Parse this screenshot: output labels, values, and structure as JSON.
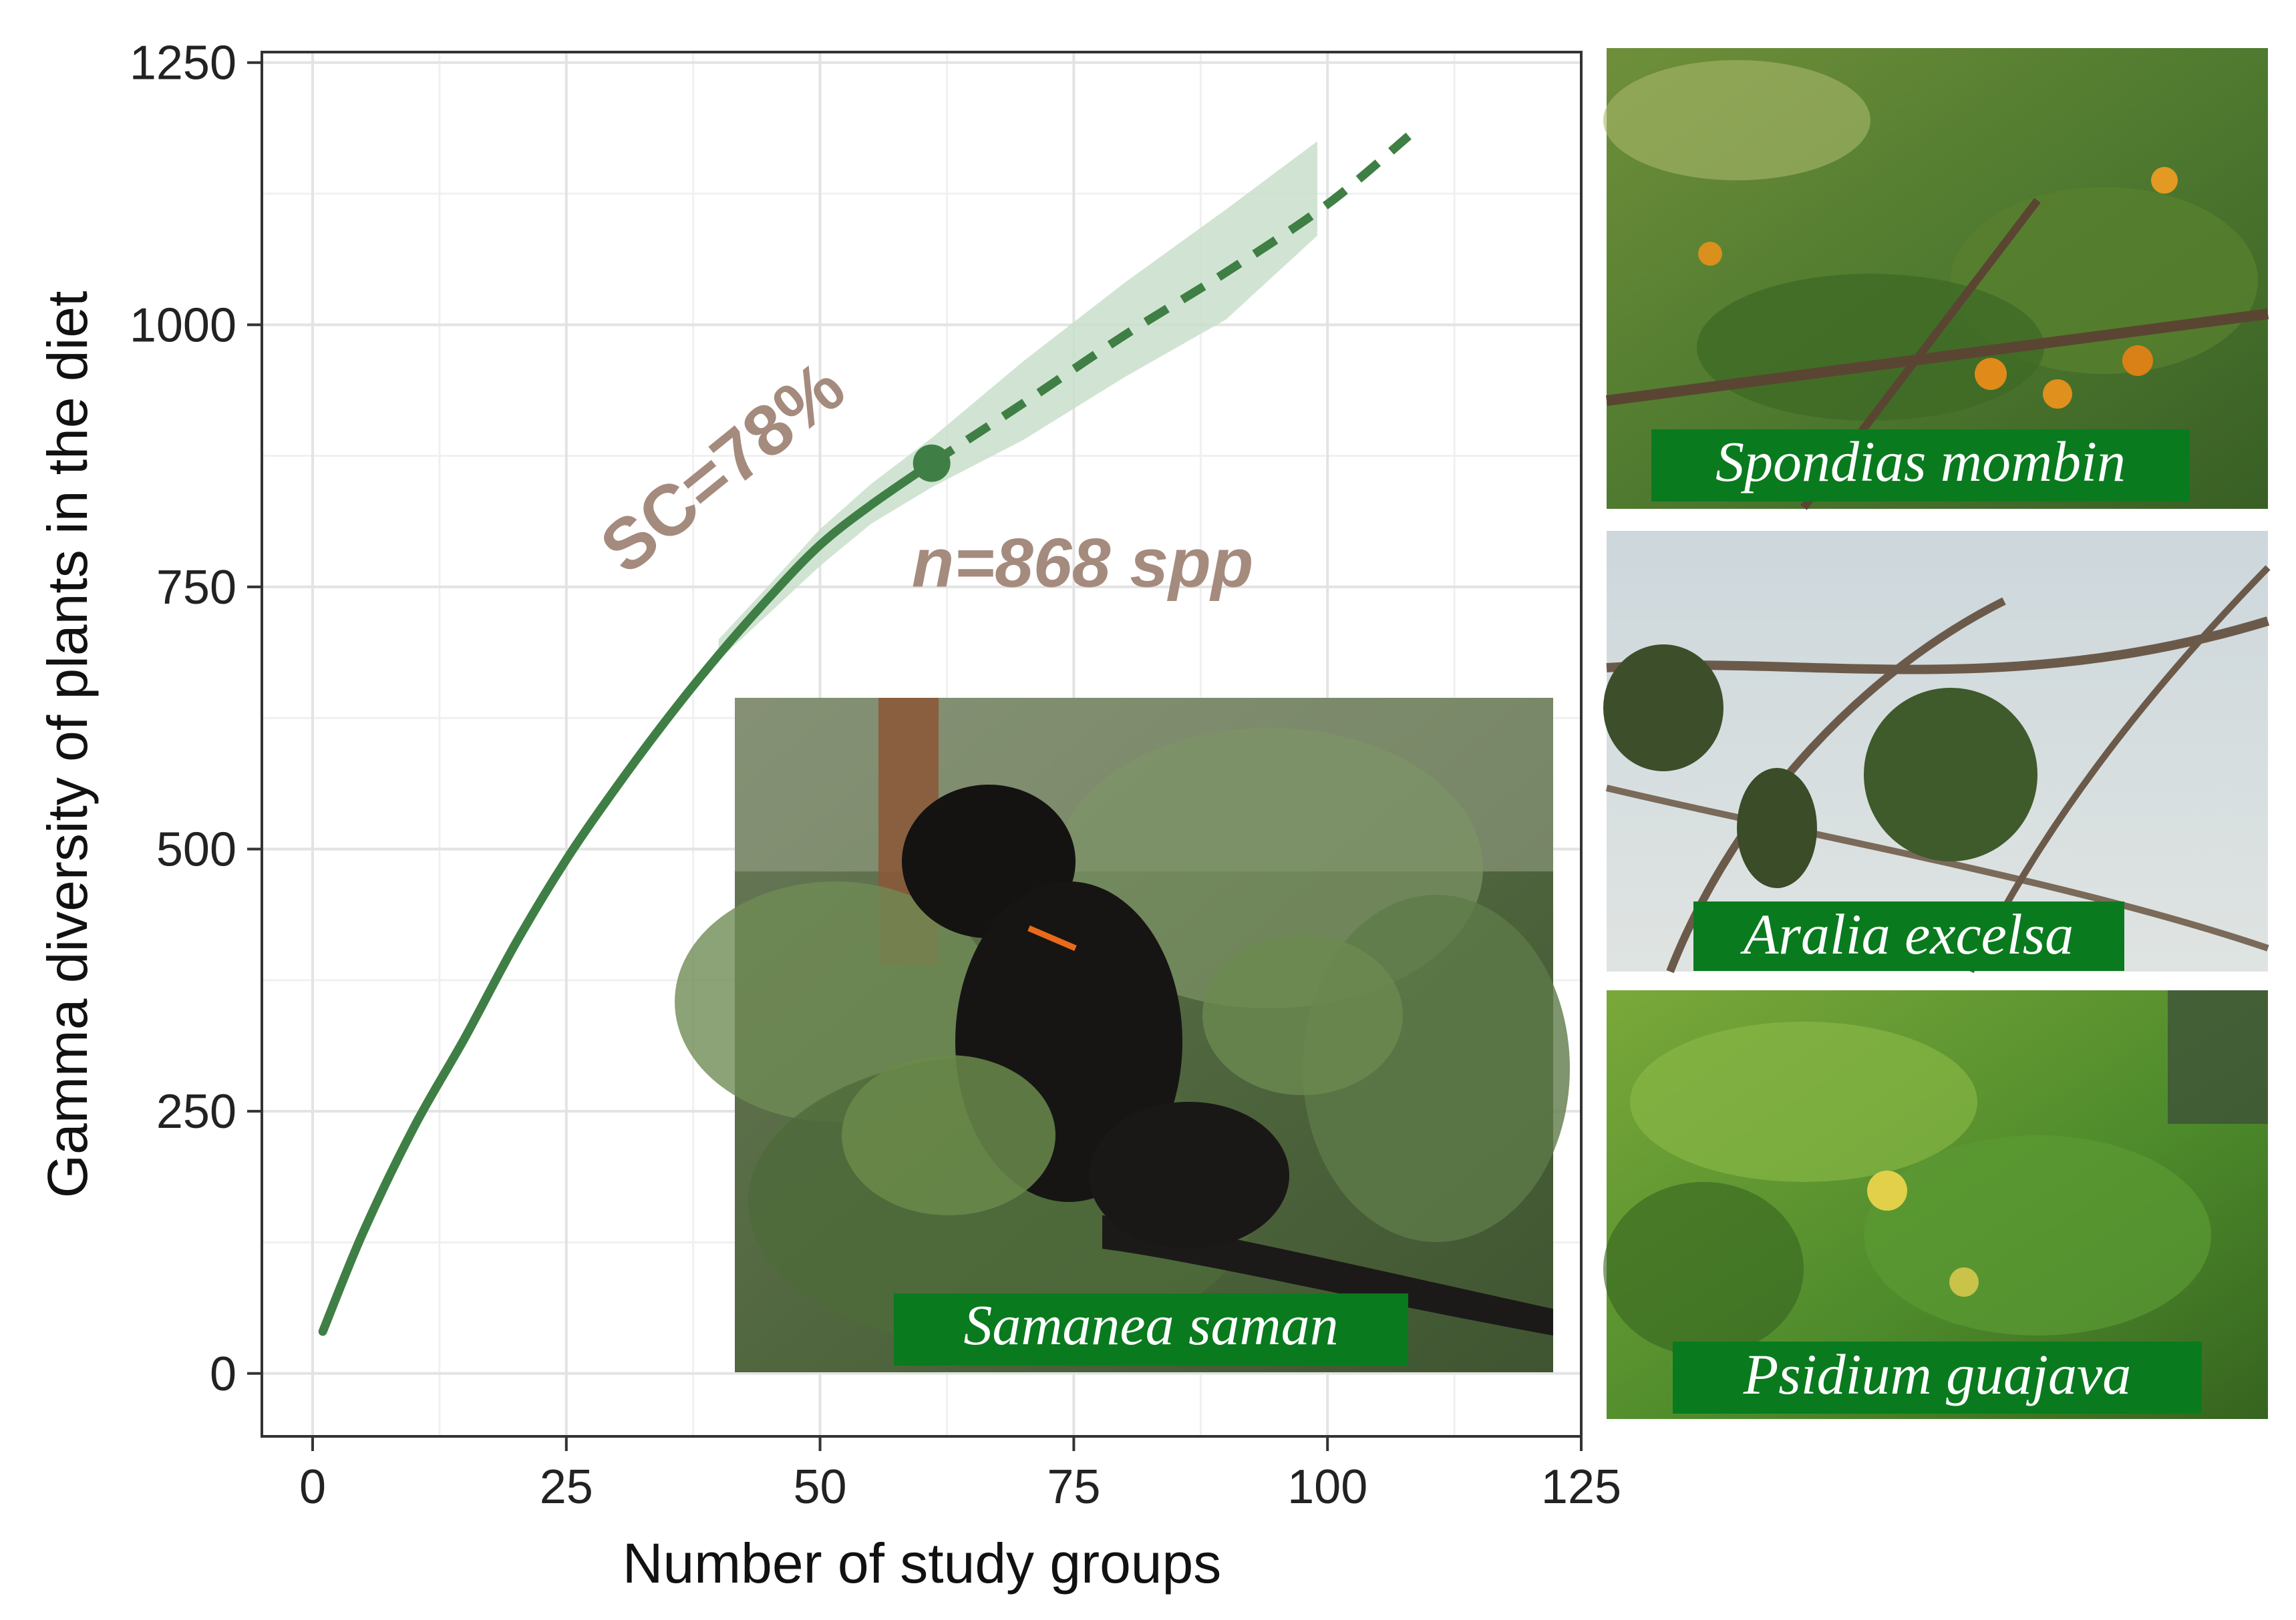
{
  "chart_data": {
    "type": "line",
    "title": "",
    "xlabel": "Number of study groups",
    "ylabel": "Gamma diversity of plants in the diet",
    "xlim": [
      -5,
      125
    ],
    "ylim": [
      -60,
      1260
    ],
    "x_ticks": [
      0,
      25,
      50,
      75,
      100,
      125
    ],
    "x_tick_labels": [
      "0",
      "25",
      "50",
      "75",
      "100",
      "125"
    ],
    "y_ticks": [
      0,
      250,
      500,
      750,
      1000,
      1250
    ],
    "y_tick_labels": [
      "0",
      "250",
      "500",
      "750",
      "1000",
      "1250"
    ],
    "grid": true,
    "series": [
      {
        "style": "solid",
        "x": [
          1,
          5,
          10,
          15,
          20,
          25,
          30,
          35,
          40,
          45,
          50,
          55,
          61
        ],
        "y": [
          40,
          135,
          235,
          320,
          410,
          490,
          560,
          625,
          685,
          740,
          790,
          828,
          868
        ]
      },
      {
        "style": "dashed",
        "x": [
          61,
          70,
          80,
          90,
          100,
          108
        ],
        "y": [
          868,
          925,
          990,
          1050,
          1115,
          1180
        ]
      }
    ],
    "confidence_band": {
      "x": [
        40,
        45,
        50,
        55,
        61,
        70,
        80,
        90,
        99
      ],
      "lower": [
        680,
        725,
        770,
        810,
        845,
        890,
        950,
        1005,
        1085
      ],
      "upper": [
        700,
        752,
        805,
        848,
        892,
        965,
        1040,
        1110,
        1175
      ]
    },
    "highlight_point": {
      "x": 61,
      "y": 868
    },
    "annotations": {
      "coverage": "SC=78%",
      "count": "n=868 spp"
    },
    "colors": {
      "line": "#3f7f45",
      "band": "#c9dfcb",
      "annotation": "#a48b7d",
      "label_bg": "#0a7a1e"
    }
  },
  "photos": {
    "main": {
      "label": "Samanea saman"
    },
    "top_right": {
      "label": "Spondias mombin"
    },
    "middle_right": {
      "label": "Aralia excelsa"
    },
    "bottom_right": {
      "label": "Psidium guajava"
    }
  }
}
